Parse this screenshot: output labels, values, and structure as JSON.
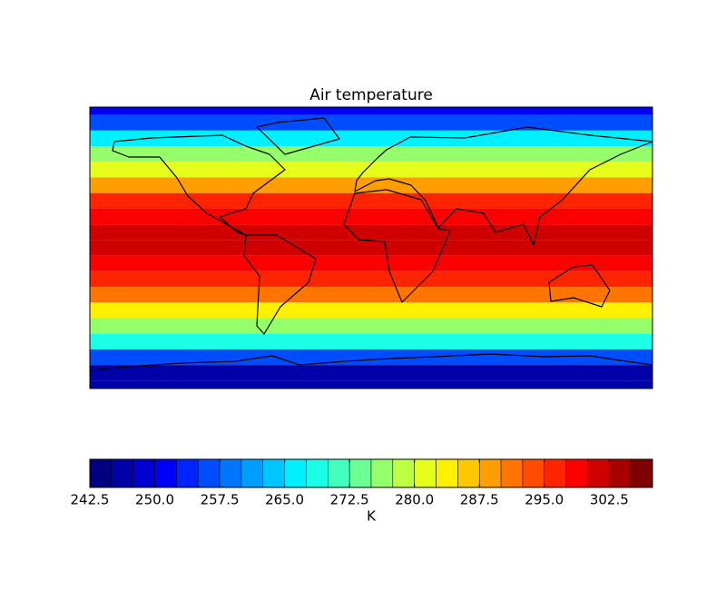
{
  "chart_data": {
    "type": "map",
    "title": "Air temperature",
    "colormap": "jet",
    "lat": [
      90,
      80,
      70,
      60,
      50,
      40,
      30,
      20,
      10,
      0,
      -10,
      -20,
      -30,
      -40,
      -50,
      -60,
      -70,
      -80,
      -90
    ],
    "values": [
      252,
      257,
      265,
      275,
      282,
      289,
      295,
      299,
      300,
      300,
      299,
      296,
      291,
      284,
      276,
      268,
      255,
      247,
      245
    ],
    "colorbar": {
      "label": "K",
      "levels": [
        242.5,
        245,
        247.5,
        250,
        252.5,
        255,
        257.5,
        260,
        262.5,
        265,
        267.5,
        270,
        272.5,
        275,
        277.5,
        280,
        282.5,
        285,
        287.5,
        290,
        292.5,
        295,
        297.5,
        300,
        302.5,
        305,
        307.5
      ],
      "xlim": [
        242.5,
        307.5
      ],
      "xticks": [
        242.5,
        {
          "value": 250,
          "label": "250.0"
        },
        257.5,
        {
          "value": 265,
          "label": "265.0"
        },
        272.5,
        {
          "value": 280,
          "label": "280.0"
        },
        287.5,
        {
          "value": 295,
          "label": "295.0"
        },
        302.5
      ]
    }
  }
}
